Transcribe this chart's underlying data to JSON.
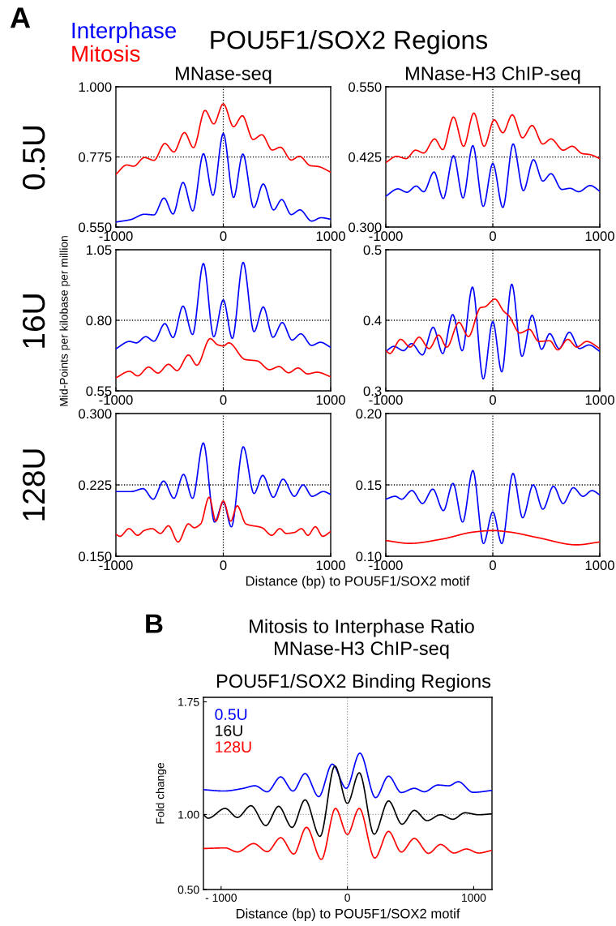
{
  "chart_data": [
    {
      "type": "line",
      "title": "MNase-seq",
      "annotations": [
        "A",
        "POU5F1/SOX2 Regions",
        "0.5U"
      ],
      "legend": "top left",
      "series": [
        {
          "name": "Interphase",
          "color": "#0000ff",
          "x": [
            -1000,
            -861,
            -734,
            -646,
            -552,
            -468,
            -375,
            -284,
            -185,
            -96,
            0,
            96,
            182,
            284,
            372,
            468,
            544,
            633,
            714,
            823,
            911,
            1000
          ],
          "values": [
            0.566,
            0.574,
            0.591,
            0.589,
            0.643,
            0.592,
            0.693,
            0.602,
            0.785,
            0.652,
            0.85,
            0.645,
            0.784,
            0.613,
            0.688,
            0.605,
            0.638,
            0.59,
            0.605,
            0.569,
            0.58,
            0.575
          ]
        },
        {
          "name": "Mitosis",
          "color": "#ff0000",
          "x": [
            -1000,
            -899,
            -835,
            -734,
            -646,
            -544,
            -461,
            -362,
            -278,
            -170,
            -89,
            0,
            96,
            177,
            278,
            359,
            456,
            532,
            633,
            709,
            810,
            886,
            1000
          ],
          "values": [
            0.719,
            0.749,
            0.745,
            0.773,
            0.764,
            0.818,
            0.791,
            0.853,
            0.805,
            0.924,
            0.881,
            0.945,
            0.872,
            0.907,
            0.831,
            0.846,
            0.797,
            0.806,
            0.765,
            0.777,
            0.747,
            0.744,
            0.726
          ]
        }
      ],
      "xlim": [
        -1000,
        1000
      ],
      "xticks": [
        -1000,
        0,
        1000
      ],
      "ylim": [
        0.55,
        1.0
      ],
      "yticks": [
        {
          "value": 0.55,
          "label": "0.550"
        },
        {
          "value": 0.775,
          "label": "0.775"
        },
        {
          "value": 1.0,
          "label": "1.000"
        }
      ],
      "ref_lines": [
        {
          "axis": "x",
          "value": 0,
          "color": "#000000",
          "line_style": "dotted"
        },
        {
          "axis": "y",
          "value": 0.775,
          "color": "#000000",
          "line_style": "dotted"
        }
      ]
    },
    {
      "type": "line",
      "title": "MNase-H3 ChIP-seq",
      "series": [
        {
          "color": "#0000ff",
          "x": [
            -1000,
            -886,
            -803,
            -716,
            -646,
            -549,
            -463,
            -367,
            -278,
            -187,
            -89,
            0,
            94,
            190,
            286,
            380,
            468,
            544,
            646,
            722,
            803,
            911,
            1000
          ],
          "values": [
            0.355,
            0.368,
            0.362,
            0.373,
            0.363,
            0.398,
            0.351,
            0.427,
            0.352,
            0.445,
            0.337,
            0.413,
            0.335,
            0.448,
            0.365,
            0.42,
            0.382,
            0.395,
            0.367,
            0.369,
            0.363,
            0.374,
            0.364
          ]
        },
        {
          "color": "#ff0000",
          "x": [
            -1000,
            -899,
            -810,
            -722,
            -646,
            -544,
            -468,
            -367,
            -273,
            -177,
            -81,
            13,
            94,
            182,
            278,
            367,
            468,
            544,
            658,
            742,
            835,
            911,
            1000
          ],
          "values": [
            0.415,
            0.426,
            0.422,
            0.437,
            0.432,
            0.457,
            0.438,
            0.496,
            0.444,
            0.503,
            0.444,
            0.491,
            0.468,
            0.5,
            0.459,
            0.481,
            0.448,
            0.457,
            0.437,
            0.444,
            0.431,
            0.429,
            0.422
          ]
        }
      ],
      "xlim": [
        -1000,
        1000
      ],
      "xticks": [
        -1000,
        0,
        1000
      ],
      "ylim": [
        0.3,
        0.55
      ],
      "yticks": [
        {
          "value": 0.3,
          "label": "0.300"
        },
        {
          "value": 0.425,
          "label": "0.425"
        },
        {
          "value": 0.55,
          "label": "0.550"
        }
      ],
      "ref_lines": [
        {
          "axis": "x",
          "value": 0,
          "color": "#000000",
          "line_style": "dotted"
        },
        {
          "axis": "y",
          "value": 0.425,
          "color": "#000000",
          "line_style": "dotted"
        }
      ]
    },
    {
      "type": "line",
      "ylabel": "Mid-Points per kilobase per million",
      "annotations": [
        "16U"
      ],
      "series": [
        {
          "color": "#0000ff",
          "x": [
            -1000,
            -873,
            -810,
            -722,
            -646,
            -544,
            -468,
            -375,
            -286,
            -185,
            -89,
            0,
            84,
            185,
            286,
            372,
            463,
            549,
            641,
            722,
            823,
            904,
            1000
          ],
          "values": [
            0.699,
            0.725,
            0.72,
            0.742,
            0.726,
            0.788,
            0.739,
            0.85,
            0.75,
            1.001,
            0.742,
            0.872,
            0.736,
            1.005,
            0.76,
            0.847,
            0.74,
            0.792,
            0.73,
            0.752,
            0.711,
            0.722,
            0.704
          ]
        },
        {
          "color": "#ff0000",
          "x": [
            -1000,
            -873,
            -797,
            -696,
            -608,
            -511,
            -430,
            -324,
            -246,
            -122,
            -51,
            0,
            51,
            203,
            316,
            430,
            519,
            608,
            696,
            785,
            873,
            1000
          ],
          "values": [
            0.596,
            0.619,
            0.603,
            0.634,
            0.613,
            0.644,
            0.622,
            0.677,
            0.641,
            0.735,
            0.713,
            0.709,
            0.72,
            0.661,
            0.656,
            0.625,
            0.636,
            0.614,
            0.631,
            0.61,
            0.616,
            0.6
          ]
        }
      ],
      "xlim": [
        -1000,
        1000
      ],
      "xticks": [
        -1000,
        0,
        1000
      ],
      "ylim": [
        0.55,
        1.05
      ],
      "yticks": [
        {
          "value": 0.55,
          "label": "0.55"
        },
        {
          "value": 0.8,
          "label": "0.80"
        },
        {
          "value": 1.05,
          "label": "1.05"
        }
      ],
      "ref_lines": [
        {
          "axis": "x",
          "value": 0,
          "color": "#000000",
          "line_style": "dotted"
        },
        {
          "axis": "y",
          "value": 0.8,
          "color": "#000000",
          "line_style": "dotted"
        }
      ]
    },
    {
      "type": "line",
      "series": [
        {
          "color": "#0000ff",
          "x": [
            -1000,
            -924,
            -835,
            -759,
            -658,
            -557,
            -468,
            -375,
            -286,
            -190,
            -89,
            0,
            84,
            177,
            273,
            367,
            456,
            532,
            620,
            716,
            810,
            899,
            1000
          ],
          "values": [
            0.356,
            0.363,
            0.357,
            0.367,
            0.351,
            0.39,
            0.353,
            0.408,
            0.357,
            0.447,
            0.317,
            0.398,
            0.327,
            0.451,
            0.349,
            0.407,
            0.359,
            0.381,
            0.36,
            0.383,
            0.36,
            0.365,
            0.356
          ]
        },
        {
          "color": "#ff0000",
          "x": [
            -1000,
            -962,
            -861,
            -772,
            -689,
            -595,
            -506,
            -430,
            -316,
            -228,
            -114,
            -76,
            20,
            101,
            152,
            253,
            342,
            430,
            532,
            608,
            701,
            785,
            878,
            1000
          ],
          "values": [
            0.357,
            0.353,
            0.373,
            0.362,
            0.376,
            0.36,
            0.379,
            0.362,
            0.397,
            0.377,
            0.418,
            0.419,
            0.43,
            0.413,
            0.406,
            0.382,
            0.387,
            0.37,
            0.371,
            0.358,
            0.373,
            0.362,
            0.37,
            0.36
          ]
        }
      ],
      "xlim": [
        -1000,
        1000
      ],
      "xticks": [
        -1000,
        0,
        1000
      ],
      "ylim": [
        0.3,
        0.5
      ],
      "yticks": [
        0.3,
        0.4,
        0.5
      ],
      "ref_lines": [
        {
          "axis": "x",
          "value": 0,
          "color": "#000000",
          "line_style": "dotted"
        },
        {
          "axis": "y",
          "value": 0.4,
          "color": "#000000",
          "line_style": "dotted"
        }
      ]
    },
    {
      "type": "line",
      "xlabel": "Distance (bp) to POU5F1/SOX2 motif",
      "annotations": [
        "128U"
      ],
      "series": [
        {
          "color": "#0000ff",
          "x": [
            -1000,
            -857,
            -746,
            -653,
            -556,
            -460,
            -370,
            -286,
            -186,
            -81,
            0,
            75,
            186,
            286,
            367,
            466,
            556,
            662,
            743,
            827,
            932,
            1000
          ],
          "values": [
            0.218,
            0.218,
            0.221,
            0.21,
            0.229,
            0.211,
            0.236,
            0.211,
            0.269,
            0.186,
            0.207,
            0.181,
            0.265,
            0.216,
            0.235,
            0.212,
            0.231,
            0.213,
            0.225,
            0.213,
            0.218,
            0.215
          ]
        },
        {
          "color": "#ff0000",
          "x": [
            -1000,
            -962,
            -878,
            -797,
            -737,
            -662,
            -586,
            -511,
            -421,
            -325,
            -271,
            -211,
            -132,
            -69,
            0,
            69,
            129,
            211,
            361,
            451,
            526,
            586,
            662,
            728,
            788,
            857,
            926,
            1000
          ],
          "values": [
            0.173,
            0.171,
            0.179,
            0.172,
            0.177,
            0.179,
            0.174,
            0.182,
            0.165,
            0.184,
            0.18,
            0.184,
            0.212,
            0.187,
            0.208,
            0.187,
            0.203,
            0.184,
            0.18,
            0.172,
            0.179,
            0.174,
            0.175,
            0.179,
            0.172,
            0.181,
            0.171,
            0.176
          ]
        }
      ],
      "xlim": [
        -1000,
        1000
      ],
      "xticks": [
        -1000,
        0,
        1000
      ],
      "ylim": [
        0.15,
        0.3
      ],
      "yticks": [
        {
          "value": 0.15,
          "label": "0.150"
        },
        {
          "value": 0.225,
          "label": "0.225"
        },
        {
          "value": 0.3,
          "label": "0.300"
        }
      ],
      "ref_lines": [
        {
          "axis": "x",
          "value": 0,
          "color": "#000000",
          "line_style": "dotted"
        },
        {
          "axis": "y",
          "value": 0.225,
          "color": "#000000",
          "line_style": "dotted"
        }
      ]
    },
    {
      "type": "line",
      "series": [
        {
          "color": "#0000ff",
          "x": [
            -1000,
            -912,
            -852,
            -756,
            -657,
            -561,
            -462,
            -372,
            -282,
            -186,
            -87,
            0,
            84,
            189,
            279,
            378,
            468,
            567,
            657,
            753,
            843,
            927,
            1000
          ],
          "values": [
            0.14,
            0.142,
            0.14,
            0.146,
            0.137,
            0.147,
            0.132,
            0.151,
            0.124,
            0.16,
            0.109,
            0.131,
            0.109,
            0.158,
            0.127,
            0.15,
            0.133,
            0.149,
            0.137,
            0.148,
            0.142,
            0.146,
            0.143
          ]
        },
        {
          "color": "#ff0000",
          "x": [
            -1000,
            -777,
            -477,
            -177,
            0,
            153,
            423,
            783,
            1000
          ],
          "values": [
            0.111,
            0.109,
            0.112,
            0.117,
            0.118,
            0.117,
            0.113,
            0.108,
            0.11
          ]
        }
      ],
      "xlim": [
        -1000,
        1000
      ],
      "xticks": [
        -1000,
        0,
        1000
      ],
      "ylim": [
        0.1,
        0.2
      ],
      "yticks": [
        {
          "value": 0.1,
          "label": "0.10"
        },
        {
          "value": 0.15,
          "label": "0.15"
        },
        {
          "value": 0.2,
          "label": "0.20"
        }
      ],
      "ref_lines": [
        {
          "axis": "x",
          "value": 0,
          "color": "#000000",
          "line_style": "dotted"
        },
        {
          "axis": "y",
          "value": 0.15,
          "color": "#000000",
          "line_style": "dotted"
        }
      ]
    },
    {
      "type": "line",
      "title": "Mitosis to Interphase Ratio\nMNase-H3 ChIP-seq",
      "subtitle": "POU5F1/SOX2 Binding Regions",
      "annotations": [
        "B"
      ],
      "ylabel": "Fold change",
      "xlabel": "Distance (bp) to POU5F1/SOX2 motif",
      "legend": "top left",
      "series": [
        {
          "name": "0.5U",
          "color": "#0000ff",
          "x": [
            -1139,
            -979,
            -828,
            -732,
            -635,
            -528,
            -431,
            -335,
            -227,
            -120,
            -9,
            99,
            223,
            326,
            427,
            530,
            609,
            717,
            803,
            878,
            996,
            1145
          ],
          "values": [
            1.165,
            1.156,
            1.173,
            1.191,
            1.151,
            1.25,
            1.156,
            1.272,
            1.119,
            1.335,
            1.174,
            1.408,
            1.112,
            1.255,
            1.146,
            1.174,
            1.151,
            1.196,
            1.191,
            1.218,
            1.147,
            1.16
          ]
        },
        {
          "name": "16U",
          "color": "#000000",
          "x": [
            -1139,
            -1103,
            -968,
            -871,
            -764,
            -646,
            -545,
            -438,
            -335,
            -217,
            -99,
            0,
            94,
            212,
            326,
            433,
            530,
            631,
            738,
            835,
            931,
            1039,
            1145
          ],
          "values": [
            0.998,
            0.975,
            1.04,
            0.98,
            1.058,
            0.926,
            1.054,
            0.914,
            1.097,
            0.854,
            1.322,
            1.074,
            1.277,
            0.869,
            1.09,
            0.935,
            1.027,
            0.959,
            0.998,
            0.968,
            1.011,
            0.998,
            1.004
          ]
        },
        {
          "name": "128U",
          "color": "#ff0000",
          "x": [
            -1139,
            -968,
            -871,
            -742,
            -635,
            -528,
            -425,
            -324,
            -206,
            -94,
            0,
            94,
            217,
            326,
            427,
            530,
            642,
            738,
            845,
            942,
            1039,
            1145
          ],
          "values": [
            0.773,
            0.777,
            0.75,
            0.806,
            0.752,
            0.845,
            0.737,
            0.914,
            0.701,
            1.04,
            0.867,
            1.04,
            0.71,
            0.887,
            0.75,
            0.84,
            0.741,
            0.8,
            0.743,
            0.77,
            0.743,
            0.761
          ]
        }
      ],
      "xlim": [
        -1140,
        1145
      ],
      "xticks": [
        {
          "value": -1000,
          "label": "- 1000"
        },
        0,
        1000
      ],
      "ylim": [
        0.5,
        1.78
      ],
      "yticks": [
        {
          "value": 0.5,
          "label": "0.50"
        },
        {
          "value": 1.0,
          "label": "1.00"
        },
        {
          "value": 1.75,
          "label": "1.75"
        }
      ],
      "ref_lines": [
        {
          "axis": "x",
          "value": 0,
          "color": "#999999",
          "line_style": "dotted"
        },
        {
          "axis": "y",
          "value": 1.0,
          "color": "#999999",
          "line_style": "dotted"
        }
      ]
    }
  ]
}
